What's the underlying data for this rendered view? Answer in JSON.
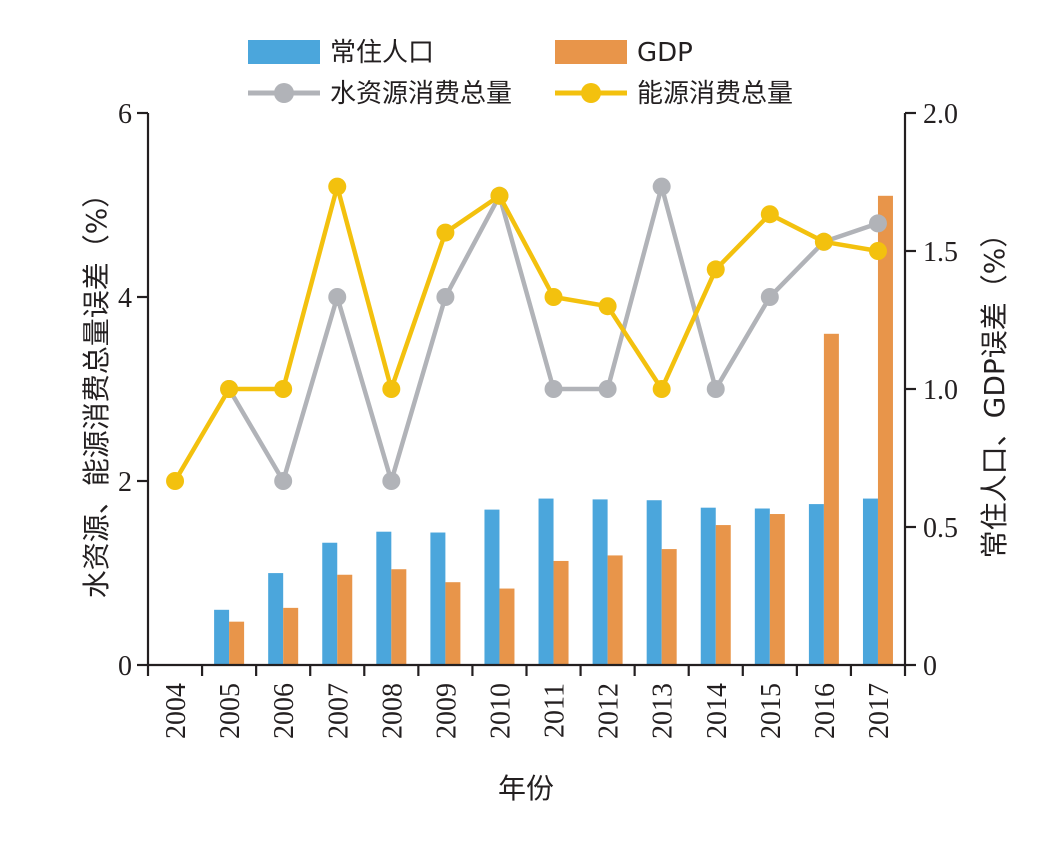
{
  "chart_data": {
    "type": "bar",
    "title": "",
    "xlabel": "年份",
    "ylabel_left": "水资源、能源消费总量误差（%）",
    "ylabel_right": "常住人口、GDP误差（%）",
    "categories": [
      "2004",
      "2005",
      "2006",
      "2007",
      "2008",
      "2009",
      "2010",
      "2011",
      "2012",
      "2013",
      "2014",
      "2015",
      "2016",
      "2017"
    ],
    "ylim_left": [
      0,
      6
    ],
    "ylim_right": [
      0,
      2.0
    ],
    "yticks_left": [
      "0",
      "2",
      "4",
      "6"
    ],
    "yticks_right": [
      "0",
      "0.5",
      "1.0",
      "1.5",
      "2.0"
    ],
    "grid": false,
    "legend_position": "top",
    "series": [
      {
        "name": "常住人口",
        "kind": "bar",
        "axis": "right",
        "color": "#4ba6dc",
        "values": [
          null,
          0.2,
          0.333,
          0.443,
          0.483,
          0.48,
          0.563,
          0.603,
          0.6,
          0.597,
          0.57,
          0.567,
          0.583,
          0.603
        ]
      },
      {
        "name": "GDP",
        "kind": "bar",
        "axis": "right",
        "color": "#e8954a",
        "values": [
          null,
          0.157,
          0.207,
          0.327,
          0.347,
          0.3,
          0.277,
          0.377,
          0.397,
          0.42,
          0.507,
          0.547,
          1.2,
          1.7
        ]
      },
      {
        "name": "水资源消费总量",
        "kind": "line",
        "axis": "left",
        "color": "#b1b3b8",
        "values": [
          null,
          3,
          2,
          4,
          2,
          4,
          5.1,
          3,
          3,
          5.2,
          3,
          4,
          4.6,
          4.8
        ]
      },
      {
        "name": "能源消费总量",
        "kind": "line",
        "axis": "left",
        "color": "#f3c10e",
        "values": [
          2,
          3,
          3,
          5.2,
          3,
          4.7,
          5.1,
          4,
          3.9,
          3,
          4.3,
          4.9,
          4.6,
          4.5
        ]
      }
    ]
  }
}
